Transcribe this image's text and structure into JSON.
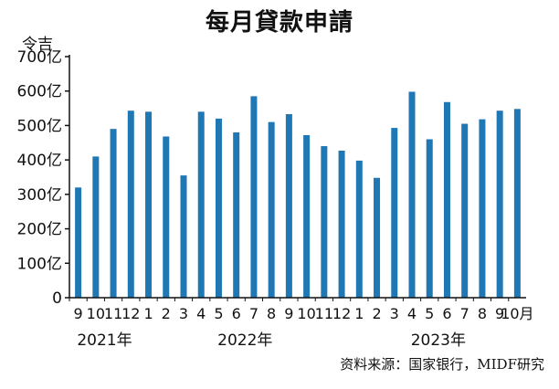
{
  "chart_data": {
    "type": "bar",
    "title": "每月貸款申請",
    "unit_label": "令吉",
    "source": "资料来源：国家银行，MIDF研究",
    "categories": [
      "9",
      "10",
      "11",
      "12",
      "1",
      "2",
      "3",
      "4",
      "5",
      "6",
      "7",
      "8",
      "9",
      "10",
      "11",
      "12",
      "1",
      "2",
      "3",
      "4",
      "5",
      "6",
      "7",
      "8",
      "9",
      "10月"
    ],
    "values": [
      320,
      410,
      490,
      543,
      540,
      468,
      355,
      540,
      520,
      480,
      585,
      510,
      533,
      472,
      440,
      427,
      398,
      348,
      493,
      598,
      460,
      568,
      505,
      518,
      543,
      548
    ],
    "year_labels": [
      {
        "label": "2021年",
        "start": 0,
        "end": 3
      },
      {
        "label": "2022年",
        "start": 4,
        "end": 15
      },
      {
        "label": "2023年",
        "start": 16,
        "end": 25
      }
    ],
    "ylim": [
      0,
      700
    ],
    "yticks": [
      0,
      100,
      200,
      300,
      400,
      500,
      600,
      700
    ],
    "ytick_labels": [
      "0",
      "100亿",
      "200亿",
      "300亿",
      "400亿",
      "500亿",
      "600亿",
      "700亿"
    ],
    "grid": false,
    "bar_color": "#1f77b4"
  }
}
